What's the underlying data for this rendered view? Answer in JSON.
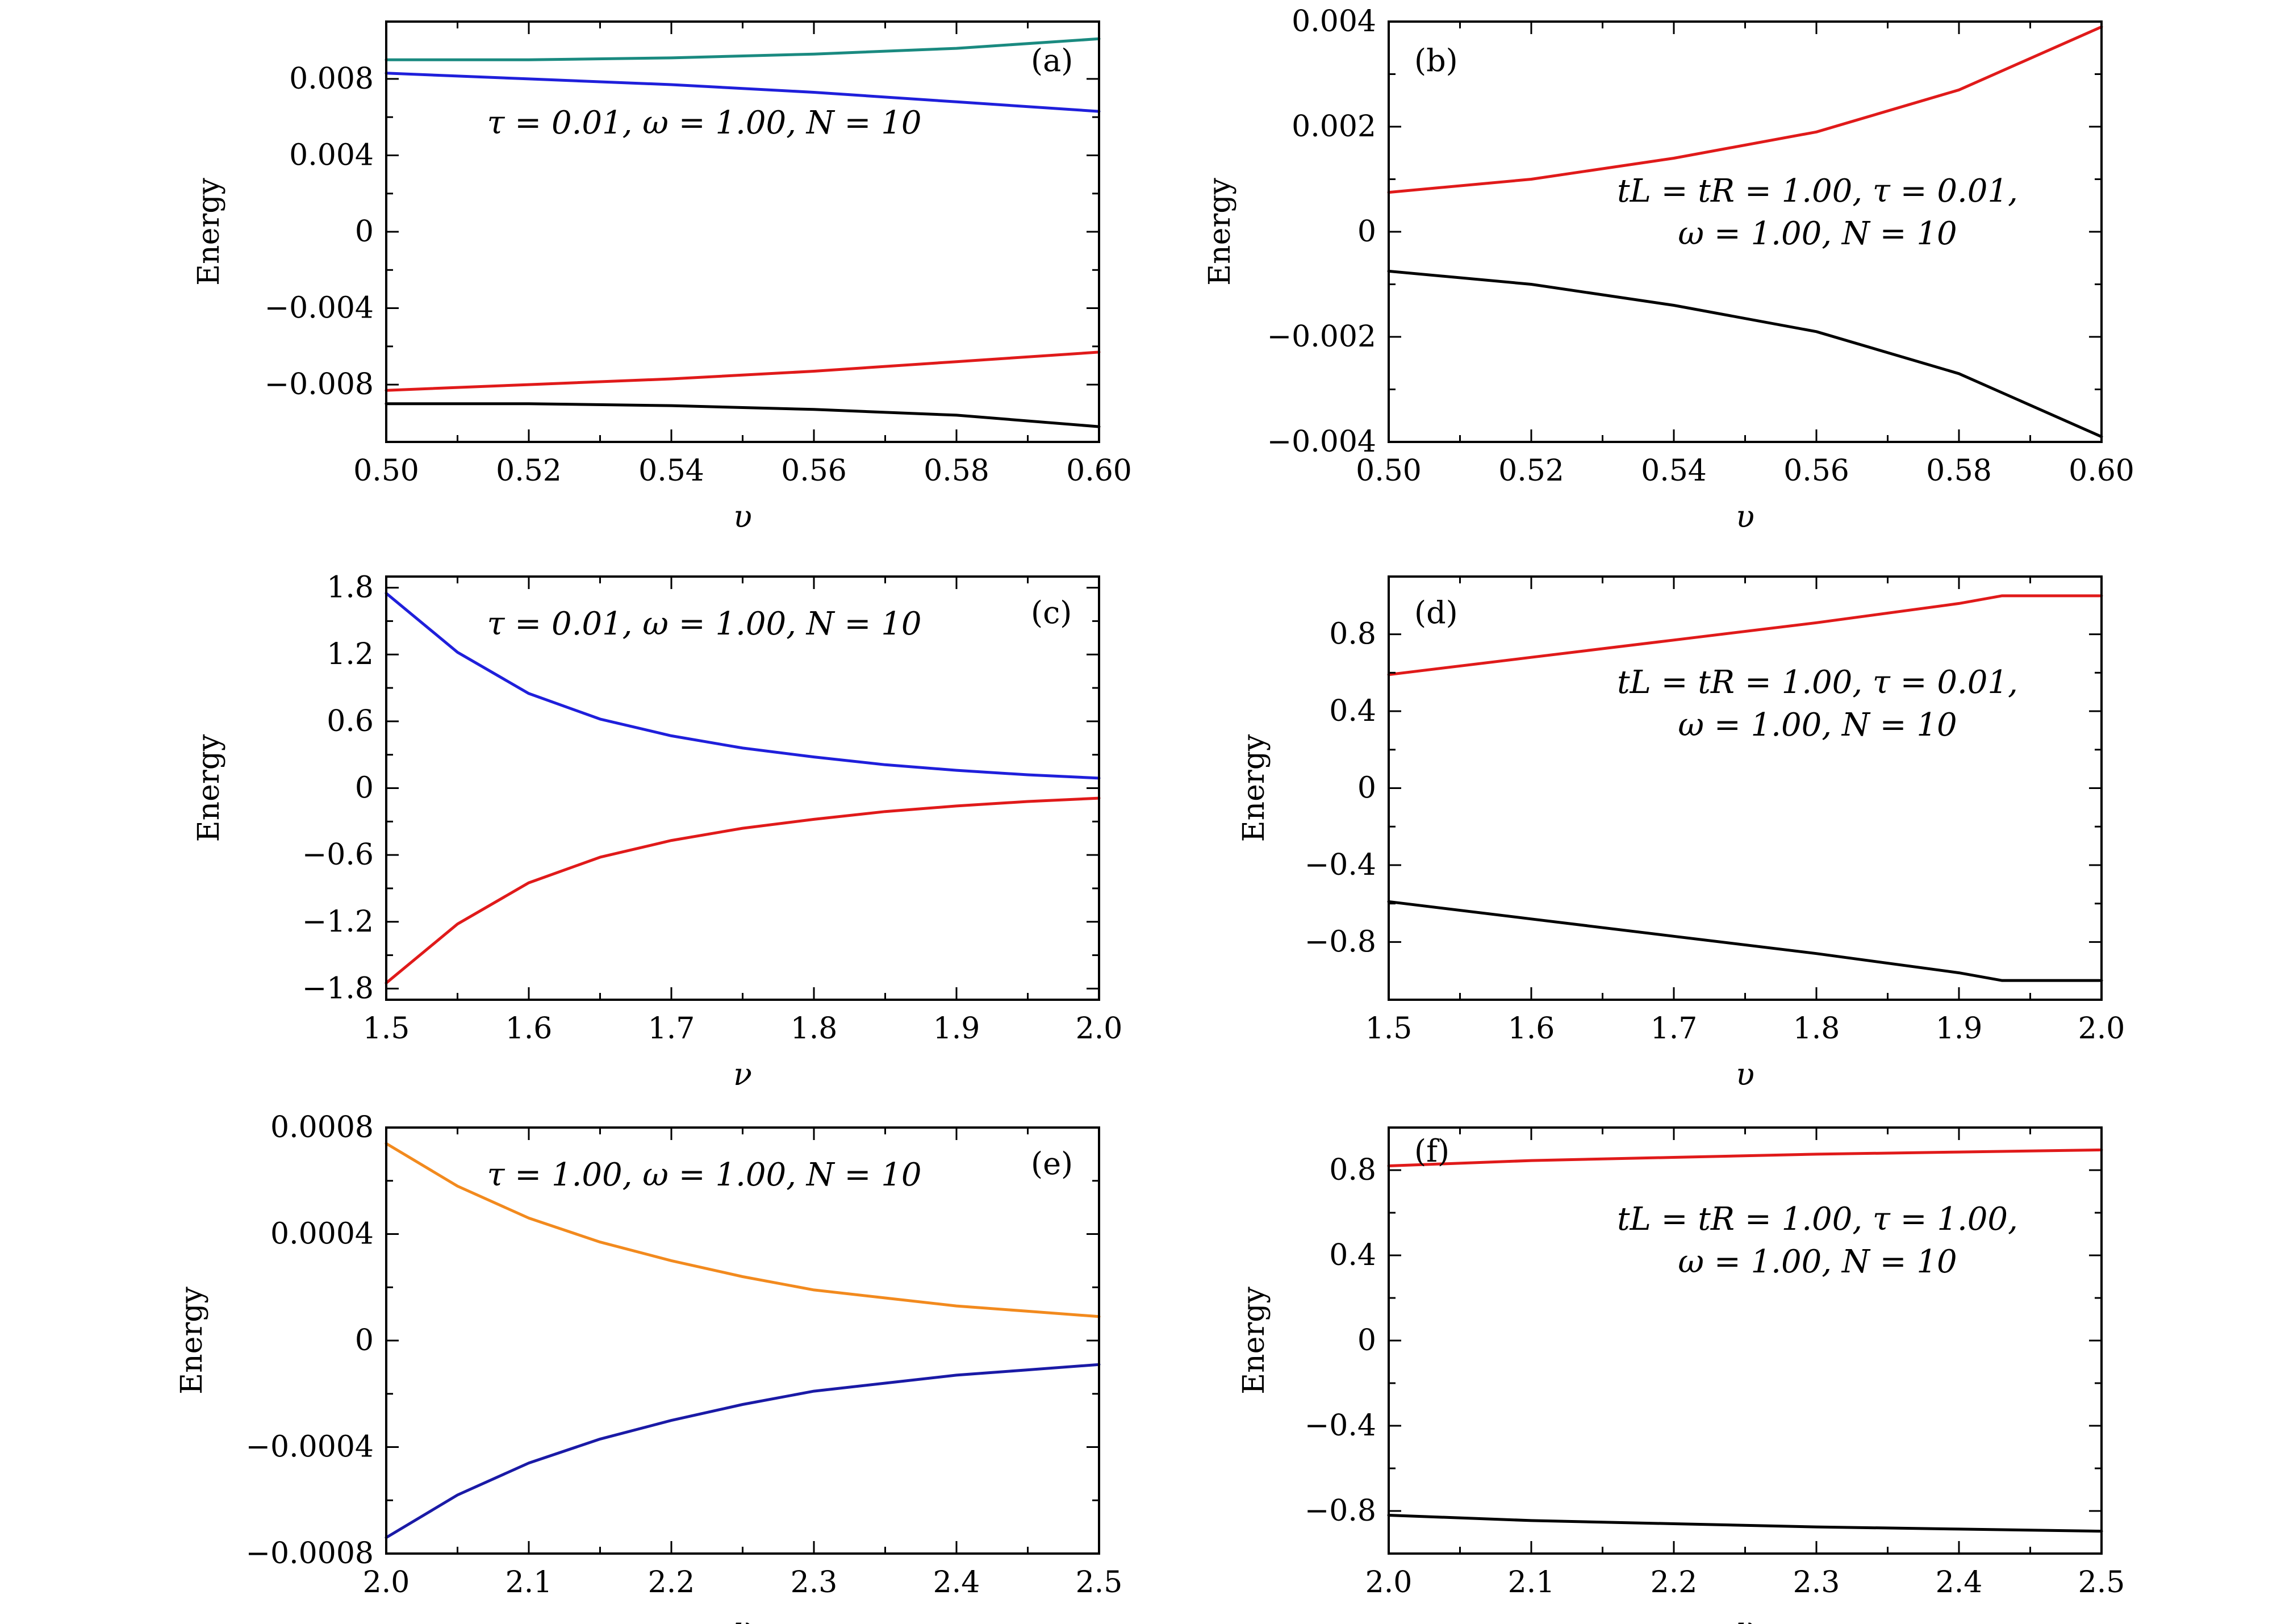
{
  "chart_data": [
    {
      "id": "a",
      "type": "line",
      "panel_label": "(a)",
      "annotation": [
        "τ = 0.01, ω = 1.00, N = 10"
      ],
      "xlabel": "υ",
      "ylabel": "Energy",
      "xlim": [
        0.5,
        0.6
      ],
      "ylim": [
        -0.011,
        0.011
      ],
      "xticks": [
        0.5,
        0.52,
        0.54,
        0.56,
        0.58,
        0.6
      ],
      "xtick_labels": [
        "0.50",
        "0.52",
        "0.54",
        "0.56",
        "0.58",
        "0.60"
      ],
      "yticks": [
        -0.008,
        -0.004,
        0,
        0.004,
        0.008
      ],
      "ytick_labels": [
        "−0.008",
        "−0.004",
        "0",
        "0.004",
        "0.008"
      ],
      "x": [
        0.5,
        0.52,
        0.54,
        0.56,
        0.58,
        0.6
      ],
      "series": [
        {
          "name": "teal",
          "color": "#1a8a80",
          "values": [
            0.009,
            0.009,
            0.0091,
            0.0093,
            0.0096,
            0.0101
          ]
        },
        {
          "name": "blue",
          "color": "#1f1fdb",
          "values": [
            0.0083,
            0.008,
            0.0077,
            0.0073,
            0.0068,
            0.0063
          ]
        },
        {
          "name": "red",
          "color": "#e01a1a",
          "values": [
            -0.0083,
            -0.008,
            -0.0077,
            -0.0073,
            -0.0068,
            -0.0063
          ]
        },
        {
          "name": "black",
          "color": "#000000",
          "values": [
            -0.009,
            -0.009,
            -0.0091,
            -0.0093,
            -0.0096,
            -0.0102
          ]
        }
      ]
    },
    {
      "id": "b",
      "type": "line",
      "panel_label": "(b)",
      "annotation": [
        "tL = tR = 1.00, τ = 0.01,",
        "ω = 1.00, N = 10"
      ],
      "xlabel": "υ",
      "ylabel": "Energy",
      "xlim": [
        0.5,
        0.6
      ],
      "ylim": [
        -0.004,
        0.004
      ],
      "xticks": [
        0.5,
        0.52,
        0.54,
        0.56,
        0.58,
        0.6
      ],
      "xtick_labels": [
        "0.50",
        "0.52",
        "0.54",
        "0.56",
        "0.58",
        "0.60"
      ],
      "yticks": [
        -0.004,
        -0.002,
        0,
        0.002,
        0.004
      ],
      "ytick_labels": [
        "−0.004",
        "−0.002",
        "0",
        "0.002",
        "0.004"
      ],
      "x": [
        0.5,
        0.52,
        0.54,
        0.56,
        0.58,
        0.6
      ],
      "series": [
        {
          "name": "red",
          "color": "#e01a1a",
          "values": [
            0.00075,
            0.001,
            0.0014,
            0.0019,
            0.0027,
            0.0039
          ]
        },
        {
          "name": "black",
          "color": "#000000",
          "values": [
            -0.00075,
            -0.001,
            -0.0014,
            -0.0019,
            -0.0027,
            -0.0039
          ]
        }
      ]
    },
    {
      "id": "c",
      "type": "line",
      "panel_label": "(c)",
      "annotation": [
        "τ = 0.01, ω = 1.00, N = 10"
      ],
      "xlabel": "ν",
      "ylabel": "Energy",
      "xlim": [
        1.5,
        2.0
      ],
      "ylim": [
        -1.9,
        1.9
      ],
      "xticks": [
        1.5,
        1.6,
        1.7,
        1.8,
        1.9,
        2.0
      ],
      "xtick_labels": [
        "1.5",
        "1.6",
        "1.7",
        "1.8",
        "1.9",
        "2.0"
      ],
      "yticks": [
        -1.8,
        -1.2,
        -0.6,
        0,
        0.6,
        1.2,
        1.8
      ],
      "ytick_labels": [
        "−1.8",
        "−1.2",
        "−0.6",
        "0",
        "0.6",
        "1.2",
        "1.8"
      ],
      "x": [
        1.5,
        1.55,
        1.6,
        1.65,
        1.7,
        1.75,
        1.8,
        1.85,
        1.9,
        1.95,
        2.0
      ],
      "series": [
        {
          "name": "blue",
          "color": "#1f1fdb",
          "values": [
            1.75,
            1.22,
            0.85,
            0.62,
            0.47,
            0.36,
            0.28,
            0.21,
            0.16,
            0.12,
            0.09
          ]
        },
        {
          "name": "red",
          "color": "#e01a1a",
          "values": [
            -1.75,
            -1.22,
            -0.85,
            -0.62,
            -0.47,
            -0.36,
            -0.28,
            -0.21,
            -0.16,
            -0.12,
            -0.09
          ]
        }
      ]
    },
    {
      "id": "d",
      "type": "line",
      "panel_label": "(d)",
      "annotation": [
        "tL = tR = 1.00, τ = 0.01,",
        "ω = 1.00, N = 10"
      ],
      "xlabel": "υ",
      "ylabel": "Energy",
      "xlim": [
        1.5,
        2.0
      ],
      "ylim": [
        -1.1,
        1.1
      ],
      "xticks": [
        1.5,
        1.6,
        1.7,
        1.8,
        1.9,
        2.0
      ],
      "xtick_labels": [
        "1.5",
        "1.6",
        "1.7",
        "1.8",
        "1.9",
        "2.0"
      ],
      "yticks": [
        -0.8,
        -0.4,
        0,
        0.4,
        0.8
      ],
      "ytick_labels": [
        "−0.8",
        "−0.4",
        "0",
        "0.4",
        "0.8"
      ],
      "x": [
        1.5,
        1.6,
        1.7,
        1.8,
        1.9,
        1.93,
        2.0
      ],
      "series": [
        {
          "name": "red",
          "color": "#e01a1a",
          "values": [
            0.59,
            0.68,
            0.77,
            0.86,
            0.96,
            1.0,
            1.0
          ]
        },
        {
          "name": "black",
          "color": "#000000",
          "values": [
            -0.59,
            -0.68,
            -0.77,
            -0.86,
            -0.96,
            -1.0,
            -1.0
          ]
        }
      ]
    },
    {
      "id": "e",
      "type": "line",
      "panel_label": "(e)",
      "annotation": [
        "τ = 1.00, ω = 1.00, N = 10"
      ],
      "xlabel": "υ",
      "ylabel": "Energy",
      "xlim": [
        2.0,
        2.5
      ],
      "ylim": [
        -0.0008,
        0.0008
      ],
      "xticks": [
        2.0,
        2.1,
        2.2,
        2.3,
        2.4,
        2.5
      ],
      "xtick_labels": [
        "2.0",
        "2.1",
        "2.2",
        "2.3",
        "2.4",
        "2.5"
      ],
      "yticks": [
        -0.0008,
        -0.0004,
        0,
        0.0004,
        0.0008
      ],
      "ytick_labels": [
        "−0.0008",
        "−0.0004",
        "0",
        "0.0004",
        "0.0008"
      ],
      "x": [
        2.0,
        2.05,
        2.1,
        2.15,
        2.2,
        2.25,
        2.3,
        2.35,
        2.4,
        2.45,
        2.5
      ],
      "series": [
        {
          "name": "orange",
          "color": "#f28a1e",
          "values": [
            0.00074,
            0.00058,
            0.00046,
            0.00037,
            0.0003,
            0.00024,
            0.00019,
            0.00016,
            0.00013,
            0.00011,
            9e-05
          ]
        },
        {
          "name": "navy",
          "color": "#1a1aa6",
          "values": [
            -0.00074,
            -0.00058,
            -0.00046,
            -0.00037,
            -0.0003,
            -0.00024,
            -0.00019,
            -0.00016,
            -0.00013,
            -0.00011,
            -9e-05
          ]
        }
      ]
    },
    {
      "id": "f",
      "type": "line",
      "panel_label": "(f)",
      "annotation": [
        "tL = tR = 1.00, τ = 1.00,",
        "ω = 1.00, N = 10"
      ],
      "xlabel": "υ",
      "ylabel": "Energy",
      "xlim": [
        2.0,
        2.5
      ],
      "ylim": [
        -1.0,
        1.0
      ],
      "xticks": [
        2.0,
        2.1,
        2.2,
        2.3,
        2.4,
        2.5
      ],
      "xtick_labels": [
        "2.0",
        "2.1",
        "2.2",
        "2.3",
        "2.4",
        "2.5"
      ],
      "yticks": [
        -0.8,
        -0.4,
        0,
        0.4,
        0.8
      ],
      "ytick_labels": [
        "−0.8",
        "−0.4",
        "0",
        "0.4",
        "0.8"
      ],
      "x": [
        2.0,
        2.1,
        2.2,
        2.3,
        2.4,
        2.5
      ],
      "series": [
        {
          "name": "red",
          "color": "#e01a1a",
          "values": [
            0.82,
            0.845,
            0.86,
            0.875,
            0.885,
            0.895
          ]
        },
        {
          "name": "black",
          "color": "#000000",
          "values": [
            -0.82,
            -0.845,
            -0.86,
            -0.875,
            -0.885,
            -0.895
          ]
        }
      ]
    }
  ]
}
